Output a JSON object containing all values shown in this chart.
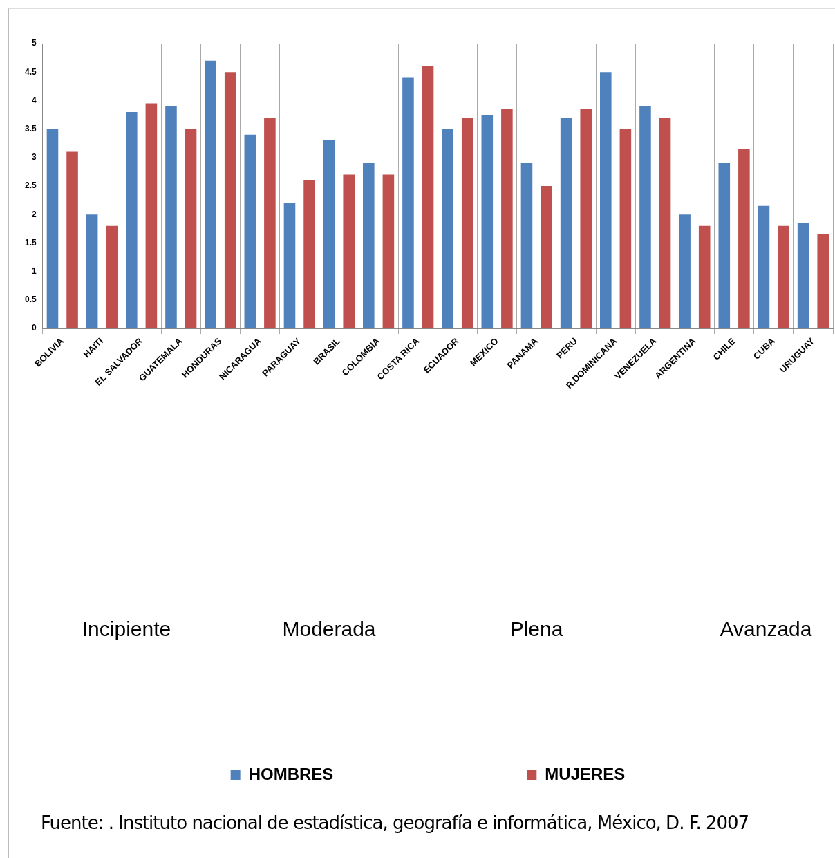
{
  "chart_data": {
    "type": "bar",
    "categories": [
      "BOLIVIA",
      "HAITI",
      "EL SALVADOR",
      "GUATEMALA",
      "HONDURAS",
      "NICARAGUA",
      "PARAGUAY",
      "BRASIL",
      "COLOMBIA",
      "COSTA RICA",
      "ECUADOR",
      "MEXICO",
      "PANAMA",
      "PERU",
      "R.DOMINICANA",
      "VENEZUELA",
      "ARGENTINA",
      "CHILE",
      "CUBA",
      "URUGUAY"
    ],
    "series": [
      {
        "name": "HOMBRES",
        "color": "#4f81bd",
        "values": [
          3.5,
          2.0,
          3.8,
          3.9,
          4.7,
          3.4,
          2.2,
          3.3,
          2.9,
          4.4,
          3.5,
          3.75,
          2.9,
          3.7,
          4.5,
          3.9,
          2.0,
          2.9,
          2.15,
          1.85
        ]
      },
      {
        "name": "MUJERES",
        "color": "#c0504d",
        "values": [
          3.1,
          1.8,
          3.95,
          3.5,
          4.5,
          3.7,
          2.6,
          2.7,
          2.7,
          4.6,
          3.7,
          3.85,
          2.5,
          3.85,
          3.5,
          3.7,
          1.8,
          3.15,
          1.8,
          1.65
        ]
      }
    ],
    "ylim": [
      0,
      5
    ],
    "yticks": [
      0,
      0.5,
      1,
      1.5,
      2,
      2.5,
      3,
      3.5,
      4,
      4.5,
      5
    ],
    "grid": "x",
    "legend": "bottom",
    "annotations": [
      "Incipiente",
      "Moderada",
      "Plena",
      "Avanzada",
      "Fuente: .  Instituto nacional de estadística, geografía e informática, México, D. F. 2007"
    ]
  }
}
